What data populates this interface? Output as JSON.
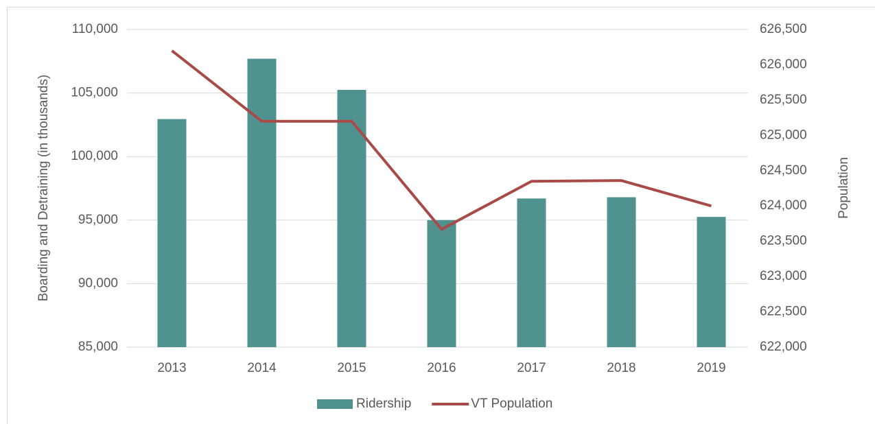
{
  "chart_data": {
    "type": "bar",
    "categories": [
      "2013",
      "2014",
      "2015",
      "2016",
      "2017",
      "2018",
      "2019"
    ],
    "series": [
      {
        "name": "Ridership",
        "type": "bar",
        "color": "#4f928f",
        "values": [
          102950,
          107700,
          105250,
          95000,
          96700,
          96800,
          95250
        ]
      },
      {
        "name": "VT Population",
        "type": "line",
        "axis": "y2",
        "color": "#a84a47",
        "values": [
          626200,
          625200,
          625200,
          623670,
          624350,
          624360,
          624000
        ]
      }
    ],
    "y_label": "Boarding and Detraining (in thousands)",
    "y2_label": "Population",
    "ylim": [
      85000,
      110000
    ],
    "yticks": [
      {
        "value": 85000,
        "label": "85,000"
      },
      {
        "value": 90000,
        "label": "90,000"
      },
      {
        "value": 95000,
        "label": "95,000"
      },
      {
        "value": 100000,
        "label": "100,000"
      },
      {
        "value": 105000,
        "label": "105,000"
      },
      {
        "value": 110000,
        "label": "110,000"
      }
    ],
    "y2lim": [
      622000,
      626500
    ],
    "y2ticks": [
      {
        "value": 622000,
        "label": "622,000"
      },
      {
        "value": 622500,
        "label": "622,500"
      },
      {
        "value": 623000,
        "label": "623,000"
      },
      {
        "value": 623500,
        "label": "623,500"
      },
      {
        "value": 624000,
        "label": "624,000"
      },
      {
        "value": 624500,
        "label": "624,500"
      },
      {
        "value": 625000,
        "label": "625,000"
      },
      {
        "value": 625500,
        "label": "625,500"
      },
      {
        "value": 626000,
        "label": "626,000"
      },
      {
        "value": 626500,
        "label": "626,500"
      }
    ],
    "grid": true,
    "legend": "bottom"
  }
}
